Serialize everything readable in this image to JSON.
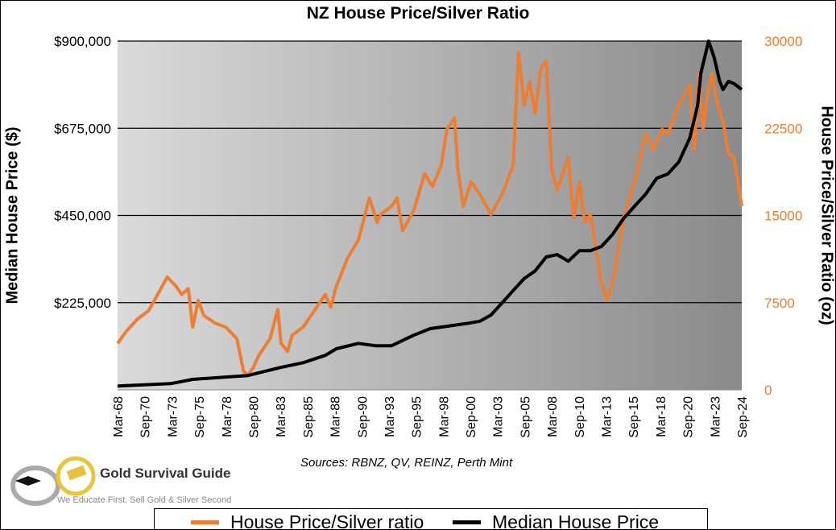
{
  "chart_data": {
    "type": "line",
    "title": "NZ House Price/Silver Ratio",
    "ylabel": "Median House Price ($)",
    "y2label": "House Price/Silver Ratio (oz)",
    "source": "Sources: RBNZ, QV, REINZ, Perth Mint",
    "ylim": [
      0,
      900000
    ],
    "y2lim": [
      0,
      30000
    ],
    "yticks": [
      "$900,000",
      "$675,000",
      "$450,000",
      "$225,000"
    ],
    "y2ticks": [
      "30000",
      "22500",
      "15000",
      "7500",
      "0"
    ],
    "xticks": [
      "Mar-68",
      "Sep-70",
      "Mar-73",
      "Sep-75",
      "Mar-78",
      "Sep-80",
      "Mar-83",
      "Sep-85",
      "Mar-88",
      "Sep-90",
      "Mar-93",
      "Sep-95",
      "Mar-98",
      "Sep-00",
      "Mar-03",
      "Sep-05",
      "Mar-08",
      "Sep-10",
      "Mar-13",
      "Sep-15",
      "Mar-18",
      "Sep-20",
      "Mar-23",
      "Sep-24"
    ],
    "xrange": [
      "Mar-68",
      "Sep-24"
    ],
    "grid": "horizontal",
    "legend_placement": "bottom",
    "series": [
      {
        "name": "House Price/Silver ratio",
        "axis": "right",
        "color": "#ed7d31",
        "x": [
          1968.2,
          1969,
          1970,
          1971,
          1972,
          1972.7,
          1973.5,
          1974,
          1974.6,
          1975,
          1975.5,
          1976,
          1977,
          1978,
          1979,
          1979.6,
          1980,
          1980.5,
          1981,
          1982,
          1982.7,
          1983,
          1983.6,
          1984,
          1985,
          1986,
          1987,
          1987.5,
          1988,
          1989,
          1990,
          1991,
          1991.7,
          1992,
          1993,
          1993.5,
          1994,
          1995,
          1996,
          1996.7,
          1997.5,
          1998,
          1998.7,
          1999,
          1999.5,
          2000.2,
          2001,
          2002,
          2003,
          2004,
          2004.5,
          2005,
          2005.5,
          2006,
          2006.5,
          2007,
          2007.5,
          2008,
          2009,
          2009.5,
          2010,
          2010.5,
          2011,
          2012,
          2012.5,
          2013,
          2014,
          2015,
          2016,
          2016.7,
          2017.5,
          2018,
          2019,
          2020,
          2020.4,
          2020.8,
          2021.2,
          2021.6,
          2022,
          2022.5,
          2023,
          2023.5,
          2024,
          2024.7
        ],
        "values": [
          4000,
          5060,
          6100,
          6800,
          8500,
          9700,
          8900,
          8200,
          8700,
          5400,
          7700,
          6400,
          5750,
          5400,
          4400,
          1600,
          1250,
          1940,
          3000,
          4400,
          6900,
          4000,
          3300,
          4700,
          5400,
          6800,
          8200,
          7100,
          8900,
          11300,
          12900,
          16500,
          14400,
          15100,
          15800,
          16500,
          13700,
          15400,
          18600,
          17500,
          19300,
          22400,
          23400,
          18900,
          15800,
          17900,
          16800,
          15100,
          16800,
          19300,
          29000,
          24500,
          26500,
          23800,
          27600,
          28300,
          18900,
          17200,
          20000,
          14800,
          17900,
          14400,
          15100,
          9200,
          7700,
          9200,
          14800,
          17900,
          22000,
          20700,
          22400,
          22000,
          24500,
          26200,
          20700,
          27200,
          22400,
          25500,
          27200,
          24500,
          23100,
          20300,
          20000,
          15800
        ]
      },
      {
        "name": "Median House Price",
        "axis": "left",
        "color": "#000000",
        "x": [
          1968.2,
          1973,
          1975,
          1978,
          1980,
          1981,
          1983,
          1985,
          1987,
          1988,
          1990,
          1991.5,
          1993,
          1995,
          1996.5,
          1998,
          2000,
          2001,
          2002,
          2003,
          2004,
          2005,
          2006,
          2007,
          2008,
          2009,
          2010,
          2011,
          2012,
          2013,
          2014,
          2015,
          2016,
          2017,
          2018,
          2019,
          2020,
          2020.7,
          2021,
          2021.7,
          2022.2,
          2022.7,
          2023,
          2023.5,
          2024,
          2024.7
        ],
        "values": [
          10000,
          16000,
          27000,
          33000,
          37000,
          44000,
          58000,
          70000,
          89000,
          106000,
          120000,
          114000,
          114000,
          141000,
          158000,
          164000,
          172000,
          177000,
          193000,
          224000,
          256000,
          287000,
          307000,
          343000,
          349000,
          332000,
          359000,
          359000,
          370000,
          401000,
          442000,
          474000,
          505000,
          546000,
          557000,
          588000,
          650000,
          733000,
          817000,
          900000,
          858000,
          796000,
          775000,
          796000,
          790000,
          775000
        ]
      }
    ]
  },
  "logo": {
    "name": "Gold Survival Guide",
    "tagline": "We Educate First. Sell Gold & Silver Second"
  }
}
